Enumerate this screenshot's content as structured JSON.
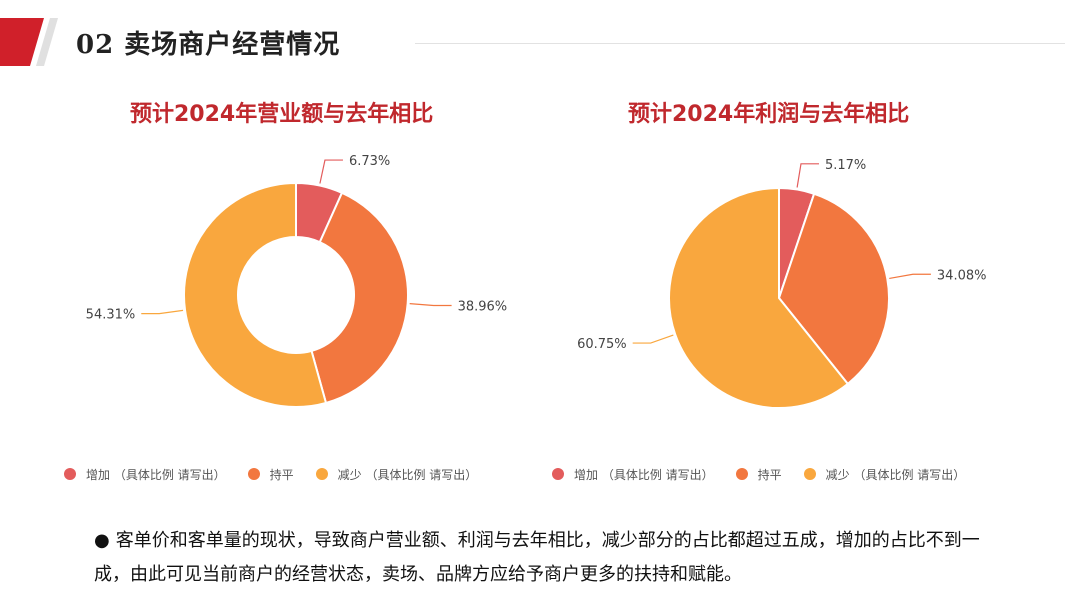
{
  "header": {
    "title": "02 卖场商户经营情况",
    "accent_color": "#d0202a"
  },
  "legend_labels": [
    "增加 （具体比例 请写出）",
    "持平",
    "减少 （具体比例 请写出）"
  ],
  "summary": {
    "bullet": "●",
    "text": "客单价和客单量的现状，导致商户营业额、利润与去年相比，减少部分的占比都超过五成，增加的占比不到一成，由此可见当前商户的经营状态，卖场、品牌方应给予商户更多的扶持和赋能。"
  },
  "chart_data": [
    {
      "type": "pie",
      "variant": "donut",
      "title": "预计2024年营业额与去年相比",
      "categories": [
        "增加 （具体比例 请写出）",
        "持平",
        "减少 （具体比例 请写出）"
      ],
      "values": [
        6.73,
        38.96,
        54.31
      ],
      "labels": [
        "6.73%",
        "38.96%",
        "54.31%"
      ],
      "colors": [
        "#e35c5c",
        "#f2773f",
        "#f9a73e"
      ],
      "legend": "bottom"
    },
    {
      "type": "pie",
      "variant": "pie",
      "title": "预计2024年利润与去年相比",
      "categories": [
        "增加 （具体比例 请写出）",
        "持平",
        "减少 （具体比例 请写出）"
      ],
      "values": [
        5.17,
        34.08,
        60.75
      ],
      "labels": [
        "5.17%",
        "34.08%",
        "60.75%"
      ],
      "colors": [
        "#e35c5c",
        "#f2773f",
        "#f9a73e"
      ],
      "legend": "bottom"
    }
  ]
}
